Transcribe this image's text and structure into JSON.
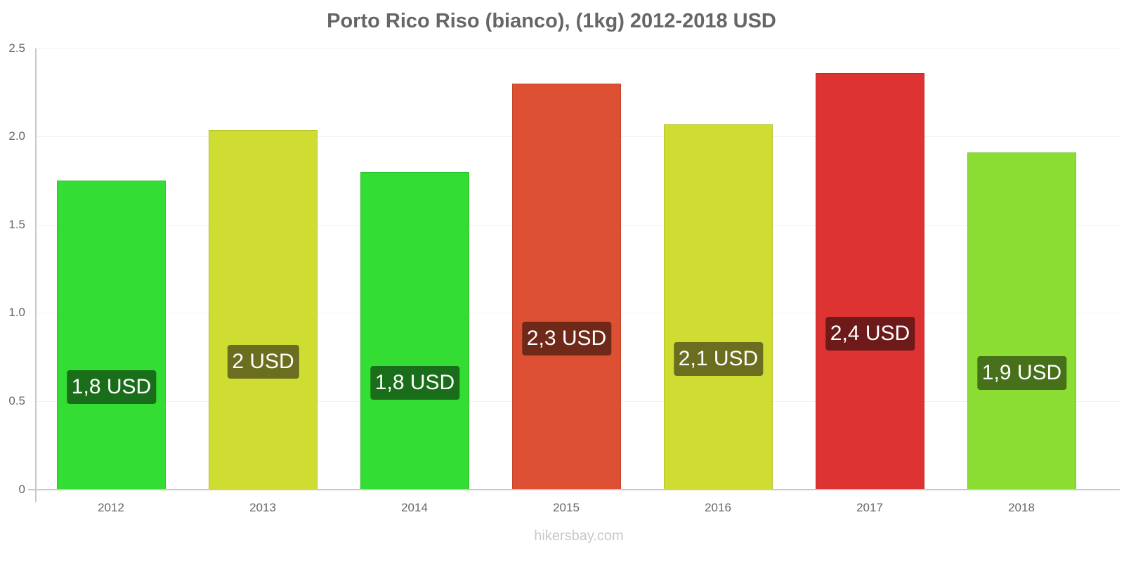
{
  "chart_data": {
    "type": "bar",
    "title": "Porto Rico Riso (bianco), (1kg) 2012-2018 USD",
    "xlabel": "",
    "ylabel": "",
    "categories": [
      "2012",
      "2013",
      "2014",
      "2015",
      "2016",
      "2017",
      "2018"
    ],
    "values": [
      1.75,
      2.04,
      1.8,
      2.3,
      2.07,
      2.36,
      1.91
    ],
    "data_labels": [
      "1,8 USD",
      "2 USD",
      "1,8 USD",
      "2,3 USD",
      "2,1 USD",
      "2,4 USD",
      "1,9 USD"
    ],
    "bar_colors": [
      "#33dd33",
      "#cfdd33",
      "#33dd33",
      "#dd5033",
      "#cfdd33",
      "#dd3333",
      "#8cdd33"
    ],
    "label_bg_colors": [
      "#1a6e1a",
      "#6b6e1f",
      "#1a6e1a",
      "#6e2919",
      "#6b6e1f",
      "#6e1a1a",
      "#46701a"
    ],
    "ylim": [
      0,
      2.5
    ],
    "yticks": [
      "0",
      "0.5",
      "1.0",
      "1.5",
      "2.0",
      "2.5"
    ],
    "grid": true,
    "legend": null
  },
  "footer": {
    "watermark": "hikersbay.com"
  }
}
